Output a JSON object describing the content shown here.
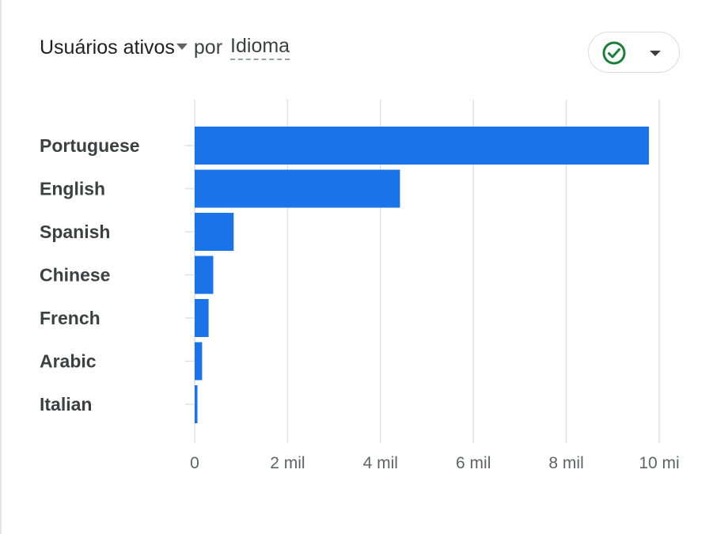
{
  "header": {
    "metric_label": "Usuários ativos",
    "by_label": "por",
    "dimension_label": "Idioma"
  },
  "colors": {
    "bar": "#1a73e8",
    "grid": "#e0e0e0",
    "check": "#188038"
  },
  "icons": {
    "compare": "check-circle-icon",
    "dropdown": "caret-down-icon"
  },
  "chart_data": {
    "type": "bar",
    "orientation": "horizontal",
    "categories": [
      "Portuguese",
      "English",
      "Spanish",
      "Chinese",
      "French",
      "Arabic",
      "Italian"
    ],
    "values": [
      9780,
      4420,
      840,
      400,
      300,
      160,
      60
    ],
    "x_ticks": [
      {
        "value": 0,
        "label": "0"
      },
      {
        "value": 2000,
        "label": "2 mil"
      },
      {
        "value": 4000,
        "label": "4 mil"
      },
      {
        "value": 6000,
        "label": "6 mil"
      },
      {
        "value": 8000,
        "label": "8 mil"
      },
      {
        "value": 10000,
        "label": "10 mi"
      }
    ],
    "xlim": [
      0,
      10000
    ],
    "grid": true
  }
}
